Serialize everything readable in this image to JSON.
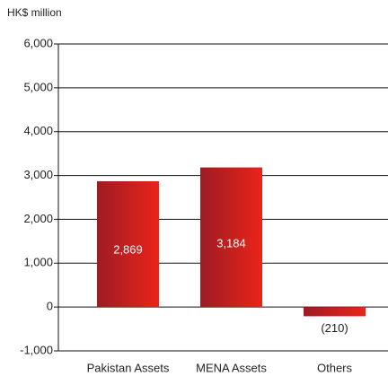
{
  "chart_data": {
    "type": "bar",
    "y_axis_label": "HK$ million",
    "categories": [
      "Pakistan Assets",
      "MENA Assets",
      "Others"
    ],
    "values": [
      2869,
      3184,
      -210
    ],
    "value_labels": [
      "2,869",
      "3,184",
      "(210)"
    ],
    "colors": [
      "#9e1b24",
      "#ea2419"
    ],
    "ylim": [
      -1000,
      6000
    ],
    "yticks": [
      {
        "value": -1000,
        "label": "-1,000"
      },
      0,
      {
        "value": 1000,
        "label": "1,000"
      },
      {
        "value": 2000,
        "label": "2,000"
      },
      {
        "value": 3000,
        "label": "3,000"
      },
      {
        "value": 4000,
        "label": "4,000"
      },
      {
        "value": 5000,
        "label": "5,000"
      },
      {
        "value": 6000,
        "label": "6,000"
      }
    ],
    "grid": true
  }
}
